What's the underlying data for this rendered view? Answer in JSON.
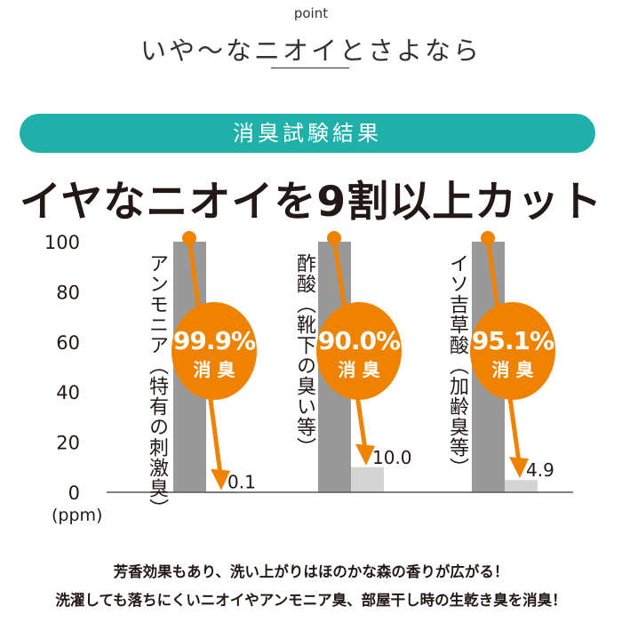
{
  "header": {
    "point_label": "point",
    "title": "いや〜なニオイとさよなら"
  },
  "banner": {
    "label": "消臭試験結果"
  },
  "headline": "イヤなニオイを9割以上カット",
  "colors": {
    "accent_teal": "#1fb0aa",
    "orange": "#ef8200",
    "bar_before": "#999999",
    "bar_after": "#d4d4d4"
  },
  "chart_data": {
    "type": "bar",
    "ylabel": "(ppm)",
    "ylim": [
      0,
      100
    ],
    "yticks": [
      "0",
      "20",
      "40",
      "60",
      "80",
      "100"
    ],
    "grid": false,
    "categories": [
      "アンモニア（特有の刺激臭）",
      "酢酸（靴下の臭い等）",
      "イソ吉草酸（加齢臭等）"
    ],
    "before": [
      100,
      100,
      100
    ],
    "after": [
      0.1,
      10.0,
      4.9
    ],
    "after_labels": [
      "0.1",
      "10.0",
      "4.9"
    ],
    "reduction_labels": [
      "99.9%",
      "90.0%",
      "95.1%"
    ],
    "reduction_caption": "消 臭"
  },
  "footer": {
    "line1": "芳香効果もあり、洗い上がりはほのかな森の香りが広がる！",
    "line2": "洗濯しても落ちにくいニオイやアンモニア臭、部屋干し時の生乾き臭を消臭！"
  }
}
